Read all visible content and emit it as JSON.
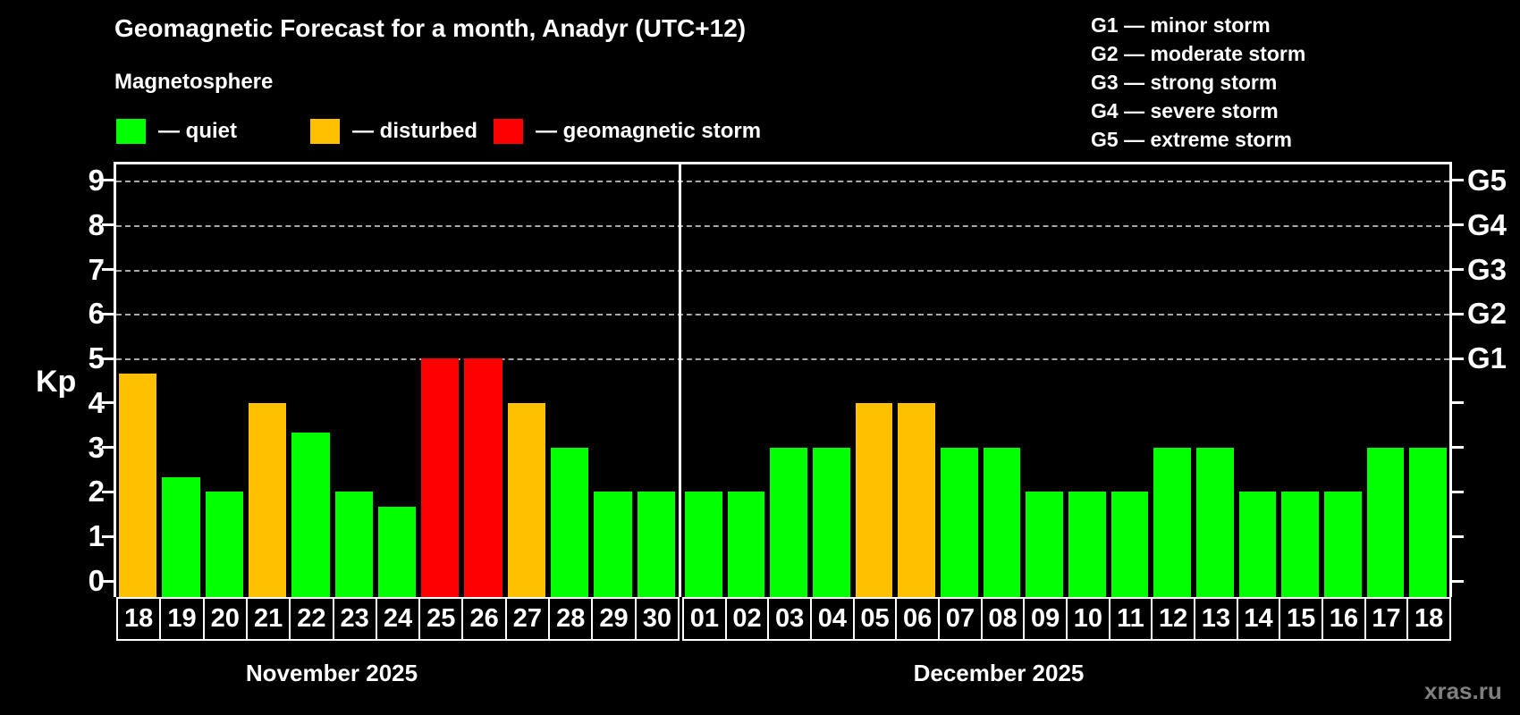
{
  "header": {
    "title": "Geomagnetic Forecast for a month, Anadyr (UTC+12)",
    "subtitle": "Magnetosphere"
  },
  "legend": {
    "items": [
      {
        "status": "quiet",
        "label": "— quiet",
        "color": "#00ff00"
      },
      {
        "status": "disturbed",
        "label": "— disturbed",
        "color": "#ffc000"
      },
      {
        "status": "storm",
        "label": "— geomagnetic storm",
        "color": "#ff0000"
      }
    ]
  },
  "storm_scale_legend": {
    "lines": [
      "G1 — minor storm",
      "G2 — moderate storm",
      "G3 — strong storm",
      "G4 — severe storm",
      "G5 — extreme storm"
    ]
  },
  "watermark": "xras.ru",
  "chart_data": {
    "type": "bar",
    "title": "Geomagnetic Forecast for a month, Anadyr (UTC+12)",
    "ylabel": "Kp",
    "ylim": [
      0,
      9
    ],
    "yticks": [
      0,
      1,
      2,
      3,
      4,
      5,
      6,
      7,
      8,
      9
    ],
    "gridlines_at_kp": [
      5,
      6,
      7,
      8,
      9
    ],
    "grid": "dashed",
    "right_axis": [
      {
        "kp": 5,
        "label": "G1"
      },
      {
        "kp": 6,
        "label": "G2"
      },
      {
        "kp": 7,
        "label": "G3"
      },
      {
        "kp": 8,
        "label": "G4"
      },
      {
        "kp": 9,
        "label": "G5"
      }
    ],
    "status_colors": {
      "quiet": "#00ff00",
      "disturbed": "#ffc000",
      "storm": "#ff0000"
    },
    "months": [
      {
        "label": "November 2025",
        "days": [
          {
            "date": "18",
            "kp": 4.67,
            "status": "disturbed"
          },
          {
            "date": "19",
            "kp": 2.33,
            "status": "quiet"
          },
          {
            "date": "20",
            "kp": 2.0,
            "status": "quiet"
          },
          {
            "date": "21",
            "kp": 4.0,
            "status": "disturbed"
          },
          {
            "date": "22",
            "kp": 3.33,
            "status": "quiet"
          },
          {
            "date": "23",
            "kp": 2.0,
            "status": "quiet"
          },
          {
            "date": "24",
            "kp": 1.67,
            "status": "quiet"
          },
          {
            "date": "25",
            "kp": 5.0,
            "status": "storm"
          },
          {
            "date": "26",
            "kp": 5.0,
            "status": "storm"
          },
          {
            "date": "27",
            "kp": 4.0,
            "status": "disturbed"
          },
          {
            "date": "28",
            "kp": 3.0,
            "status": "quiet"
          },
          {
            "date": "29",
            "kp": 2.0,
            "status": "quiet"
          },
          {
            "date": "30",
            "kp": 2.0,
            "status": "quiet"
          }
        ]
      },
      {
        "label": "December 2025",
        "days": [
          {
            "date": "01",
            "kp": 2.0,
            "status": "quiet"
          },
          {
            "date": "02",
            "kp": 2.0,
            "status": "quiet"
          },
          {
            "date": "03",
            "kp": 3.0,
            "status": "quiet"
          },
          {
            "date": "04",
            "kp": 3.0,
            "status": "quiet"
          },
          {
            "date": "05",
            "kp": 4.0,
            "status": "disturbed"
          },
          {
            "date": "06",
            "kp": 4.0,
            "status": "disturbed"
          },
          {
            "date": "07",
            "kp": 3.0,
            "status": "quiet"
          },
          {
            "date": "08",
            "kp": 3.0,
            "status": "quiet"
          },
          {
            "date": "09",
            "kp": 2.0,
            "status": "quiet"
          },
          {
            "date": "10",
            "kp": 2.0,
            "status": "quiet"
          },
          {
            "date": "11",
            "kp": 2.0,
            "status": "quiet"
          },
          {
            "date": "12",
            "kp": 3.0,
            "status": "quiet"
          },
          {
            "date": "13",
            "kp": 3.0,
            "status": "quiet"
          },
          {
            "date": "14",
            "kp": 2.0,
            "status": "quiet"
          },
          {
            "date": "15",
            "kp": 2.0,
            "status": "quiet"
          },
          {
            "date": "16",
            "kp": 2.0,
            "status": "quiet"
          },
          {
            "date": "17",
            "kp": 3.0,
            "status": "quiet"
          },
          {
            "date": "18",
            "kp": 3.0,
            "status": "quiet"
          }
        ]
      }
    ]
  }
}
